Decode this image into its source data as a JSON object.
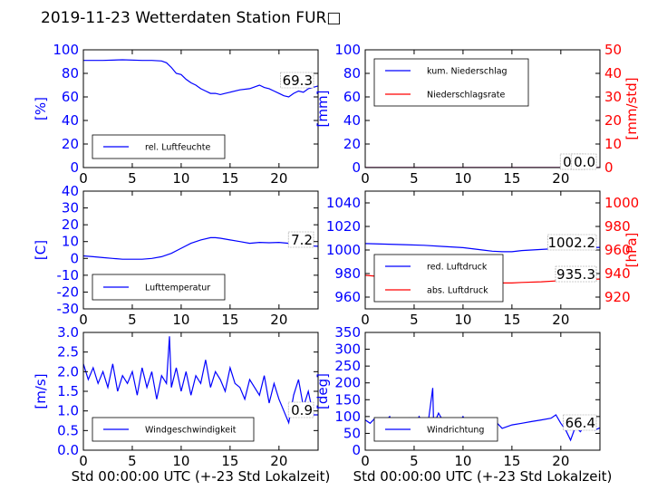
{
  "title": "2019-11-23 Wetterdaten Station FUR□",
  "colors": {
    "primary": "#0000ff",
    "secondary": "#ff0000",
    "axis": "#000000"
  },
  "chart_data": [
    {
      "type": "line",
      "id": "humidity",
      "xlim": [
        0,
        24
      ],
      "ylim": [
        0,
        100
      ],
      "xticks": [
        0,
        5,
        10,
        15,
        20
      ],
      "yticks": [
        0,
        20,
        40,
        60,
        80,
        100
      ],
      "ylabel": "[%]",
      "legend": "bottom-left",
      "series": [
        {
          "name": "rel. Luftfeuchte",
          "color": "#0000ff",
          "x": [
            0,
            2,
            4,
            6,
            7,
            8,
            8.5,
            9,
            9.5,
            10,
            10.5,
            11,
            11.5,
            12,
            12.5,
            13,
            13.5,
            14,
            14.5,
            15,
            16,
            17,
            18,
            18.5,
            19,
            19.5,
            20,
            20.5,
            21,
            21.5,
            22,
            22.5,
            23,
            24
          ],
          "y": [
            91,
            91,
            91.5,
            91,
            91,
            90.5,
            89,
            85,
            80,
            79,
            75,
            72,
            70,
            67,
            65,
            63,
            63,
            62,
            63,
            64,
            66,
            67,
            70,
            68,
            67,
            65,
            63,
            61,
            60,
            63,
            65,
            64,
            67,
            69.3
          ]
        }
      ],
      "annotations": [
        "69.3"
      ]
    },
    {
      "type": "line",
      "id": "precipitation",
      "xlim": [
        0,
        24
      ],
      "ylim": [
        0,
        100
      ],
      "ylim_right": [
        0,
        50
      ],
      "xticks": [
        0,
        5,
        10,
        15,
        20
      ],
      "yticks": [
        0,
        20,
        40,
        60,
        80,
        100
      ],
      "yticks_right": [
        0,
        10,
        20,
        30,
        40,
        50
      ],
      "ylabel": "[mm]",
      "ylabel_right": "[mm/std]",
      "legend": "top-left",
      "series": [
        {
          "name": "kum. Niederschlag",
          "color": "#0000ff",
          "axis": "left",
          "x": [
            0,
            24
          ],
          "y": [
            0,
            0
          ]
        },
        {
          "name": "Niederschlagsrate",
          "color": "#ff0000",
          "axis": "right",
          "x": [
            0,
            24
          ],
          "y": [
            0,
            0
          ]
        }
      ],
      "annotations": [
        "0.0",
        "0.0"
      ]
    },
    {
      "type": "line",
      "id": "temperature",
      "xlim": [
        0,
        24
      ],
      "ylim": [
        -30,
        40
      ],
      "xticks": [
        0,
        5,
        10,
        15,
        20
      ],
      "yticks": [
        -30,
        -20,
        -10,
        0,
        10,
        20,
        30,
        40
      ],
      "ylabel": "[C]",
      "legend": "bottom-left",
      "series": [
        {
          "name": "Lufttemperatur",
          "color": "#0000ff",
          "x": [
            0,
            1,
            2,
            3,
            4,
            5,
            6,
            7,
            8,
            9,
            10,
            11,
            12,
            13,
            13.5,
            14,
            15,
            16,
            17,
            18,
            19,
            20,
            21,
            22,
            23,
            24
          ],
          "y": [
            1.5,
            1,
            0.5,
            0,
            -0.5,
            -0.5,
            -0.5,
            0,
            1,
            3,
            6,
            9,
            11,
            12.3,
            12.3,
            12,
            11,
            10,
            9,
            9.5,
            9.3,
            9.5,
            9,
            9,
            7.5,
            7.2
          ]
        }
      ],
      "annotations": [
        "7.2"
      ]
    },
    {
      "type": "line",
      "id": "pressure",
      "xlim": [
        0,
        24
      ],
      "ylim": [
        950,
        1050
      ],
      "ylim_right": [
        910,
        1010
      ],
      "xticks": [
        0,
        5,
        10,
        15,
        20
      ],
      "yticks": [
        960,
        980,
        1000,
        1020,
        1040
      ],
      "yticks_right": [
        920,
        940,
        960,
        980,
        1000
      ],
      "ylabel": "",
      "ylabel_right": "[hPa]",
      "legend": "bottom-left",
      "series": [
        {
          "name": "red. Luftdruck",
          "color": "#0000ff",
          "axis": "left",
          "x": [
            0,
            2,
            4,
            6,
            8,
            10,
            12,
            13,
            14,
            15,
            16,
            18,
            20,
            22,
            24
          ],
          "y": [
            1005.5,
            1005,
            1004.5,
            1004,
            1003,
            1002,
            1000,
            999,
            998.5,
            998.5,
            999.5,
            1000.5,
            1001.5,
            1002,
            1002.2
          ]
        },
        {
          "name": "abs. Luftdruck",
          "color": "#ff0000",
          "axis": "right",
          "x": [
            0,
            2,
            4,
            6,
            8,
            10,
            12,
            14,
            15,
            16,
            18,
            20,
            22,
            24
          ],
          "y": [
            938.5,
            937,
            935.5,
            934.5,
            933.5,
            933,
            932.5,
            932,
            932,
            932.5,
            933,
            934,
            935,
            935.3
          ]
        }
      ],
      "annotations": [
        "1002.2",
        "935.3"
      ]
    },
    {
      "type": "line",
      "id": "windspeed",
      "xlim": [
        0,
        24
      ],
      "ylim": [
        0,
        3
      ],
      "xticks": [
        0,
        5,
        10,
        15,
        20
      ],
      "yticks": [
        0.0,
        0.5,
        1.0,
        1.5,
        2.0,
        2.5,
        3.0
      ],
      "ylabel": "[m/s]",
      "xlabel": "Std 00:00:00 UTC (+-23 Std Lokalzeit)",
      "legend": "bottom-left",
      "series": [
        {
          "name": "Windgeschwindigkeit",
          "color": "#0000ff",
          "x": [
            0,
            0.5,
            1,
            1.5,
            2,
            2.5,
            3,
            3.5,
            4,
            4.5,
            5,
            5.5,
            6,
            6.5,
            7,
            7.5,
            8,
            8.5,
            8.8,
            9,
            9.5,
            10,
            10.5,
            11,
            11.5,
            12,
            12.5,
            13,
            13.5,
            14,
            14.5,
            15,
            15.5,
            16,
            16.5,
            17,
            17.5,
            18,
            18.5,
            19,
            19.5,
            20,
            20.5,
            21,
            21.5,
            22,
            22.5,
            23,
            23.5,
            24
          ],
          "y": [
            2.2,
            1.8,
            2.1,
            1.7,
            2.0,
            1.6,
            2.2,
            1.5,
            1.9,
            1.7,
            2.0,
            1.4,
            2.1,
            1.6,
            2.0,
            1.3,
            1.9,
            1.7,
            2.9,
            1.6,
            2.1,
            1.5,
            2.0,
            1.4,
            1.9,
            1.7,
            2.3,
            1.6,
            2.0,
            1.8,
            1.5,
            2.1,
            1.7,
            1.6,
            1.3,
            1.8,
            1.6,
            1.4,
            1.9,
            1.2,
            1.7,
            1.3,
            1.0,
            0.7,
            1.4,
            1.8,
            1.1,
            1.5,
            0.9,
            0.9
          ]
        }
      ],
      "annotations": [
        "0.9"
      ]
    },
    {
      "type": "line",
      "id": "winddirection",
      "xlim": [
        0,
        24
      ],
      "ylim": [
        0,
        350
      ],
      "xticks": [
        0,
        5,
        10,
        15,
        20
      ],
      "yticks": [
        0,
        50,
        100,
        150,
        200,
        250,
        300,
        350
      ],
      "ylabel": "[deg]",
      "xlabel": "Std 00:00:00 UTC (+-23 Std Lokalzeit)",
      "legend": "bottom-left",
      "series": [
        {
          "name": "Windrichtung",
          "color": "#0000ff",
          "x": [
            0,
            0.5,
            1,
            1.5,
            2,
            2.5,
            3,
            3.5,
            4,
            4.5,
            5,
            5.5,
            6,
            6.5,
            6.9,
            7,
            7.5,
            8,
            8.5,
            9,
            9.5,
            10,
            10.5,
            11,
            11.5,
            12,
            12.5,
            13,
            13.5,
            14,
            15,
            16,
            17,
            18,
            19,
            19.5,
            20,
            20.5,
            21,
            21.5,
            22,
            22.5,
            23,
            23.5,
            24
          ],
          "y": [
            90,
            80,
            95,
            70,
            85,
            100,
            60,
            90,
            75,
            95,
            65,
            100,
            80,
            95,
            185,
            75,
            110,
            85,
            70,
            95,
            80,
            100,
            75,
            90,
            60,
            85,
            95,
            70,
            80,
            65,
            75,
            80,
            85,
            90,
            95,
            105,
            80,
            60,
            30,
            70,
            55,
            75,
            65,
            60,
            66.4
          ]
        }
      ],
      "annotations": [
        "66.4"
      ]
    }
  ]
}
